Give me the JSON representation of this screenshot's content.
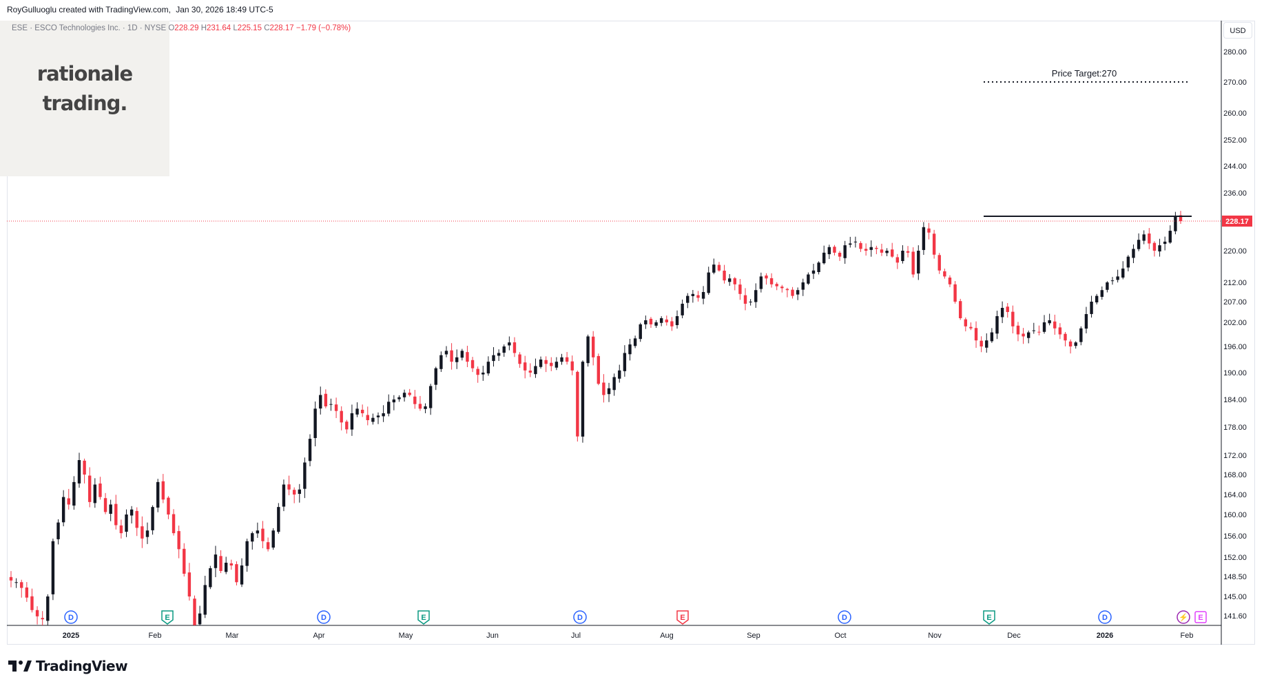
{
  "header": {
    "author": "RoyGulluoglu created with TradingView.com,",
    "datetime": "Jan 30, 2026 18:49 UTC-5"
  },
  "symbol_line": {
    "name": "ESE · ESCO Technologies Inc. · 1D · NYSE",
    "open_label": "O",
    "open": "228.29",
    "high_label": "H",
    "high": "231.64",
    "low_label": "L",
    "low": "225.15",
    "close_label": "C",
    "close": "228.17",
    "change": "−1.79 (−0.78%)"
  },
  "watermark": {
    "line1": "rationale",
    "line2": "trading."
  },
  "currency_button": "USD",
  "footer_brand": "TradingView",
  "colors": {
    "up": "#131722",
    "down": "#f23645",
    "last_price": "#f23645",
    "grid": "#f0f3fa"
  },
  "chart_data": {
    "type": "candlestick",
    "title": "",
    "ylim": [
      139.5,
      286
    ],
    "price_ticks": [
      "280.00",
      "270.00",
      "260.00",
      "252.00",
      "244.00",
      "236.00",
      "220.00",
      "212.00",
      "207.00",
      "202.00",
      "196.00",
      "190.00",
      "184.00",
      "178.00",
      "172.00",
      "168.00",
      "164.00",
      "160.00",
      "156.00",
      "152.00",
      "148.50",
      "145.00",
      "141.60"
    ],
    "time_ticks": [
      "2025",
      "Feb",
      "Mar",
      "Apr",
      "May",
      "Jun",
      "Jul",
      "Aug",
      "Sep",
      "Oct",
      "Nov",
      "Dec",
      "2026",
      "Feb"
    ],
    "last_price": {
      "label": "228.17",
      "value": 228.17
    },
    "annotations": {
      "price_target": {
        "label": "Price Target:270",
        "value": 270
      },
      "resistance_level": 229.5
    },
    "events": [
      {
        "type": "D",
        "label": "D"
      },
      {
        "type": "E",
        "label": "E",
        "style": "green"
      },
      {
        "type": "D",
        "label": "D"
      },
      {
        "type": "E",
        "label": "E",
        "style": "green"
      },
      {
        "type": "D",
        "label": "D"
      },
      {
        "type": "E",
        "label": "E",
        "style": "red"
      },
      {
        "type": "D",
        "label": "D"
      },
      {
        "type": "E",
        "label": "E",
        "style": "green"
      },
      {
        "type": "D",
        "label": "D"
      },
      {
        "type": "S",
        "label": "⚡",
        "style": "purple"
      },
      {
        "type": "E",
        "label": "E",
        "style": "pink"
      }
    ],
    "series_path": [
      147.8,
      147.5,
      146.5,
      144.8,
      142.6,
      141.5,
      141.0,
      145.0,
      155.0,
      158.5,
      163.5,
      162.0,
      166.5,
      171.0,
      168.0,
      162.5,
      166.0,
      163.5,
      160.5,
      162.0,
      158.0,
      156.5,
      160.0,
      161.0,
      157.5,
      155.5,
      157.0,
      161.5,
      166.5,
      163.0,
      160.0,
      156.5,
      153.5,
      149.0,
      145.0,
      140.0,
      142.0,
      147.0,
      150.0,
      152.5,
      149.5,
      151.0,
      150.5,
      147.5,
      150.5,
      155.0,
      156.5,
      157.0,
      155.0,
      153.5,
      157.0,
      161.5,
      166.0,
      165.0,
      164.0,
      165.0,
      170.5,
      175.5,
      182.0,
      185.0,
      182.5,
      183.0,
      181.5,
      179.0,
      177.5,
      181.0,
      182.0,
      181.0,
      179.5,
      180.0,
      180.5,
      181.0,
      183.5,
      184.0,
      184.5,
      185.5,
      185.0,
      183.0,
      182.0,
      182.5,
      187.0,
      191.0,
      194.0,
      195.0,
      192.5,
      193.5,
      195.0,
      192.5,
      191.0,
      189.5,
      190.0,
      192.5,
      194.0,
      194.5,
      196.0,
      197.0,
      194.5,
      192.0,
      190.5,
      190.0,
      191.5,
      193.0,
      192.0,
      191.5,
      192.5,
      193.5,
      192.5,
      190.5,
      176.0,
      192.5,
      198.5,
      193.5,
      187.5,
      185.0,
      186.5,
      189.0,
      190.5,
      194.5,
      196.5,
      198.0,
      201.5,
      202.5,
      201.5,
      202.0,
      203.0,
      202.0,
      201.0,
      203.5,
      206.5,
      208.5,
      209.0,
      208.0,
      209.5,
      214.5,
      216.5,
      215.0,
      212.5,
      213.0,
      211.5,
      209.0,
      206.5,
      207.0,
      210.0,
      213.5,
      213.0,
      211.5,
      211.0,
      210.5,
      210.0,
      208.5,
      210.0,
      212.0,
      214.0,
      215.0,
      217.0,
      219.5,
      221.0,
      219.5,
      218.5,
      221.5,
      222.0,
      222.5,
      220.5,
      220.0,
      221.0,
      220.5,
      219.5,
      220.0,
      218.5,
      217.0,
      220.0,
      219.5,
      214.0,
      220.0,
      226.5,
      225.0,
      219.0,
      215.0,
      213.5,
      211.5,
      207.0,
      203.0,
      201.0,
      200.5,
      197.5,
      196.0,
      197.5,
      199.5,
      203.5,
      205.5,
      204.5,
      201.0,
      199.0,
      198.5,
      199.5,
      200.0,
      199.5,
      202.0,
      202.5,
      200.5,
      199.0,
      197.5,
      196.0,
      197.0,
      200.5,
      204.0,
      207.0,
      208.5,
      210.0,
      212.0,
      212.5,
      213.5,
      215.5,
      218.5,
      220.5,
      223.0,
      224.5,
      222.0,
      220.0,
      221.5,
      222.5,
      225.5,
      229.5,
      228.17
    ]
  }
}
